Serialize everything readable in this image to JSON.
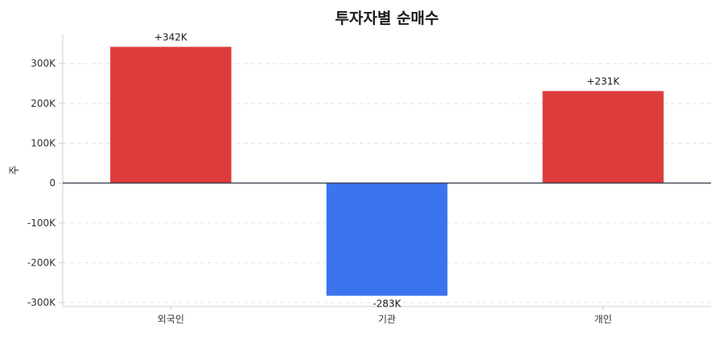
{
  "chart_data": {
    "type": "bar",
    "title": "투자자별 순매수",
    "xlabel": "",
    "ylabel": "주",
    "categories": [
      "외국인",
      "기관",
      "개인"
    ],
    "values": [
      342000,
      -283000,
      231000
    ],
    "data_labels": [
      "+342K",
      "-283K",
      "+231K"
    ],
    "ylim": [
      -310000,
      375000
    ],
    "yticks": [
      -300000,
      -200000,
      -100000,
      0,
      100000,
      200000,
      300000
    ],
    "ytick_labels": [
      "-300K",
      "-200K",
      "-100K",
      "0",
      "100K",
      "200K",
      "300K"
    ],
    "grid": true,
    "colors": {
      "positive": "#de3b3b",
      "negative": "#3b74ed"
    }
  }
}
